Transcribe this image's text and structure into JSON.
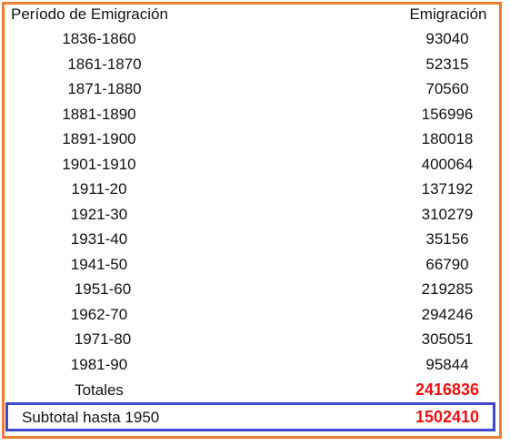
{
  "table": {
    "header": {
      "period": "Período de Emigración",
      "value": "Emigración"
    },
    "rows": [
      {
        "period": "1836-1860",
        "value": "93040"
      },
      {
        "period": "1861-1870",
        "value": "52315"
      },
      {
        "period": "1871-1880",
        "value": "70560"
      },
      {
        "period": "1881-1890",
        "value": "156996"
      },
      {
        "period": "1891-1900",
        "value": "180018"
      },
      {
        "period": "1901-1910",
        "value": "400064"
      },
      {
        "period": "1911-20",
        "value": "137192"
      },
      {
        "period": "1921-30",
        "value": "310279"
      },
      {
        "period": "1931-40",
        "value": "35156"
      },
      {
        "period": "1941-50",
        "value": "66790"
      },
      {
        "period": "1951-60",
        "value": "219285"
      },
      {
        "period": "1962-70",
        "value": "294246"
      },
      {
        "period": "1971-80",
        "value": "305051"
      },
      {
        "period": "1981-90",
        "value": "95844"
      }
    ],
    "total": {
      "label": "Totales",
      "value": "2416836"
    },
    "subtotal": {
      "label": "Subtotal hasta 1950",
      "value": "1502410"
    }
  },
  "colors": {
    "frame_border": "#ED7D31",
    "subtotal_border": "#3F48CC",
    "highlight_value": "#EE1111"
  }
}
